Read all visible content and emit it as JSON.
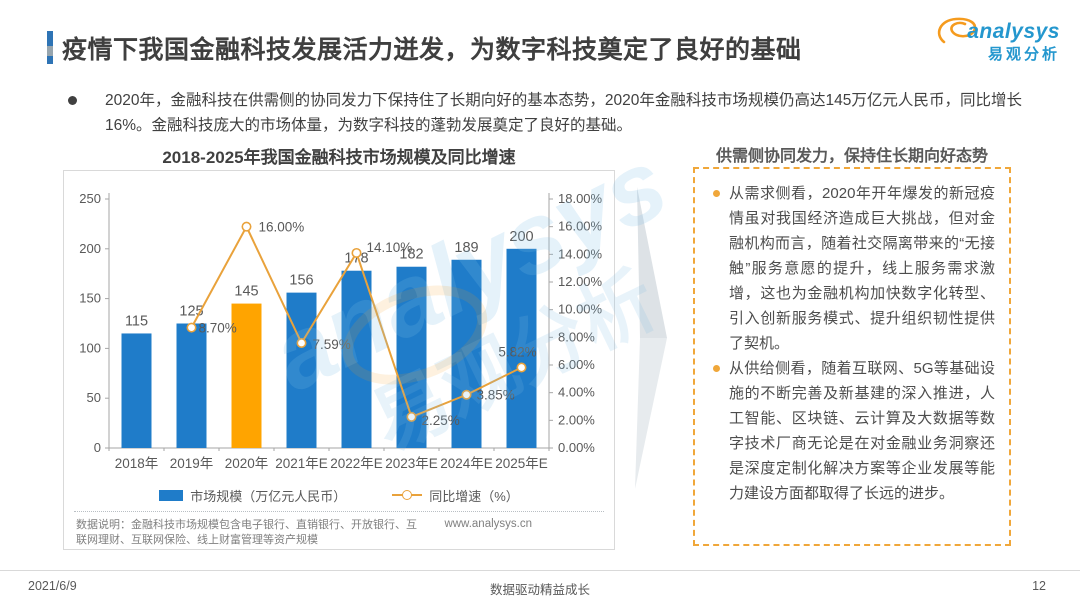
{
  "header": {
    "title": "疫情下我国金融科技发展活力迸发，为数字科技奠定了良好的基础",
    "logo": {
      "brand": "analysys",
      "brand_cn": "易观分析"
    }
  },
  "summary": {
    "text": "2020年，金融科技在供需侧的协同发力下保持住了长期向好的基本态势，2020年金融科技市场规模仍高达145万亿元人民币，同比增长16%。金融科技庞大的市场体量，为数字科技的蓬勃发展奠定了良好的基础。"
  },
  "chart": {
    "title": "2018-2025年我国金融科技市场规模及同比增速",
    "legend": [
      {
        "label": "市场规模（万亿元人民币）"
      },
      {
        "label": "同比增速（%）"
      }
    ],
    "note": "数据说明：金融科技市场规模包含电子银行、直销银行、开放银行、互联网理财、互联网保险、线上财富管理等资产规模",
    "source_url": "www.analysys.cn"
  },
  "chart_data": {
    "type": "bar",
    "title": "2018-2025年我国金融科技市场规模及同比增速",
    "categories": [
      "2018年",
      "2019年",
      "2020年",
      "2021年E",
      "2022年E",
      "2023年E",
      "2024年E",
      "2025年E"
    ],
    "series": [
      {
        "name": "市场规模（万亿元人民币）",
        "type": "bar",
        "values": [
          115,
          125,
          145,
          156,
          178,
          182,
          189,
          200
        ],
        "color": "#1f7cc9",
        "highlight_index": 2,
        "highlight_color": "#ffa400"
      },
      {
        "name": "同比增速（%）",
        "type": "line",
        "values": [
          null,
          8.7,
          16.0,
          7.59,
          14.1,
          2.25,
          3.85,
          5.82
        ],
        "labels": [
          null,
          "8.70%",
          "16.00%",
          "7.59%",
          "14.10%",
          "2.25%",
          "3.85%",
          "5.82%"
        ],
        "color": "#e9a23b"
      }
    ],
    "left_axis": {
      "min": 0,
      "max": 250,
      "step": 50
    },
    "right_axis": {
      "min": 0,
      "max": 18,
      "step": 2,
      "format": "percent2"
    },
    "grid": false,
    "legend_position": "bottom",
    "label_offsets": [
      null,
      [
        7,
        5,
        "start"
      ],
      [
        12,
        5,
        "start"
      ],
      [
        11,
        6,
        "start"
      ],
      [
        10,
        -1,
        "start"
      ],
      [
        10,
        8,
        "start"
      ],
      [
        10,
        5,
        "start"
      ],
      [
        -4,
        -11,
        "middle"
      ]
    ]
  },
  "panel": {
    "heading": "供需侧协同发力，保持住长期向好态势",
    "bullets": [
      "从需求侧看，2020年开年爆发的新冠疫情虽对我国经济造成巨大挑战，但对金融机构而言，随着社交隔离带来的“无接触”服务意愿的提升，线上服务需求激增，这也为金融机构加快数字化转型、引入创新服务模式、提升组织韧性提供了契机。",
      "从供给侧看，随着互联网、5G等基础设施的不断完善及新基建的深入推进，人工智能、区块链、云计算及大数据等数字技术厂商无论是在对金融业务洞察还是深度定制化解决方案等企业发展等能力建设方面都取得了长远的进步。"
    ]
  },
  "footer": {
    "date": "2021/6/9",
    "center": "数据驱动精益成长",
    "page": "12"
  }
}
